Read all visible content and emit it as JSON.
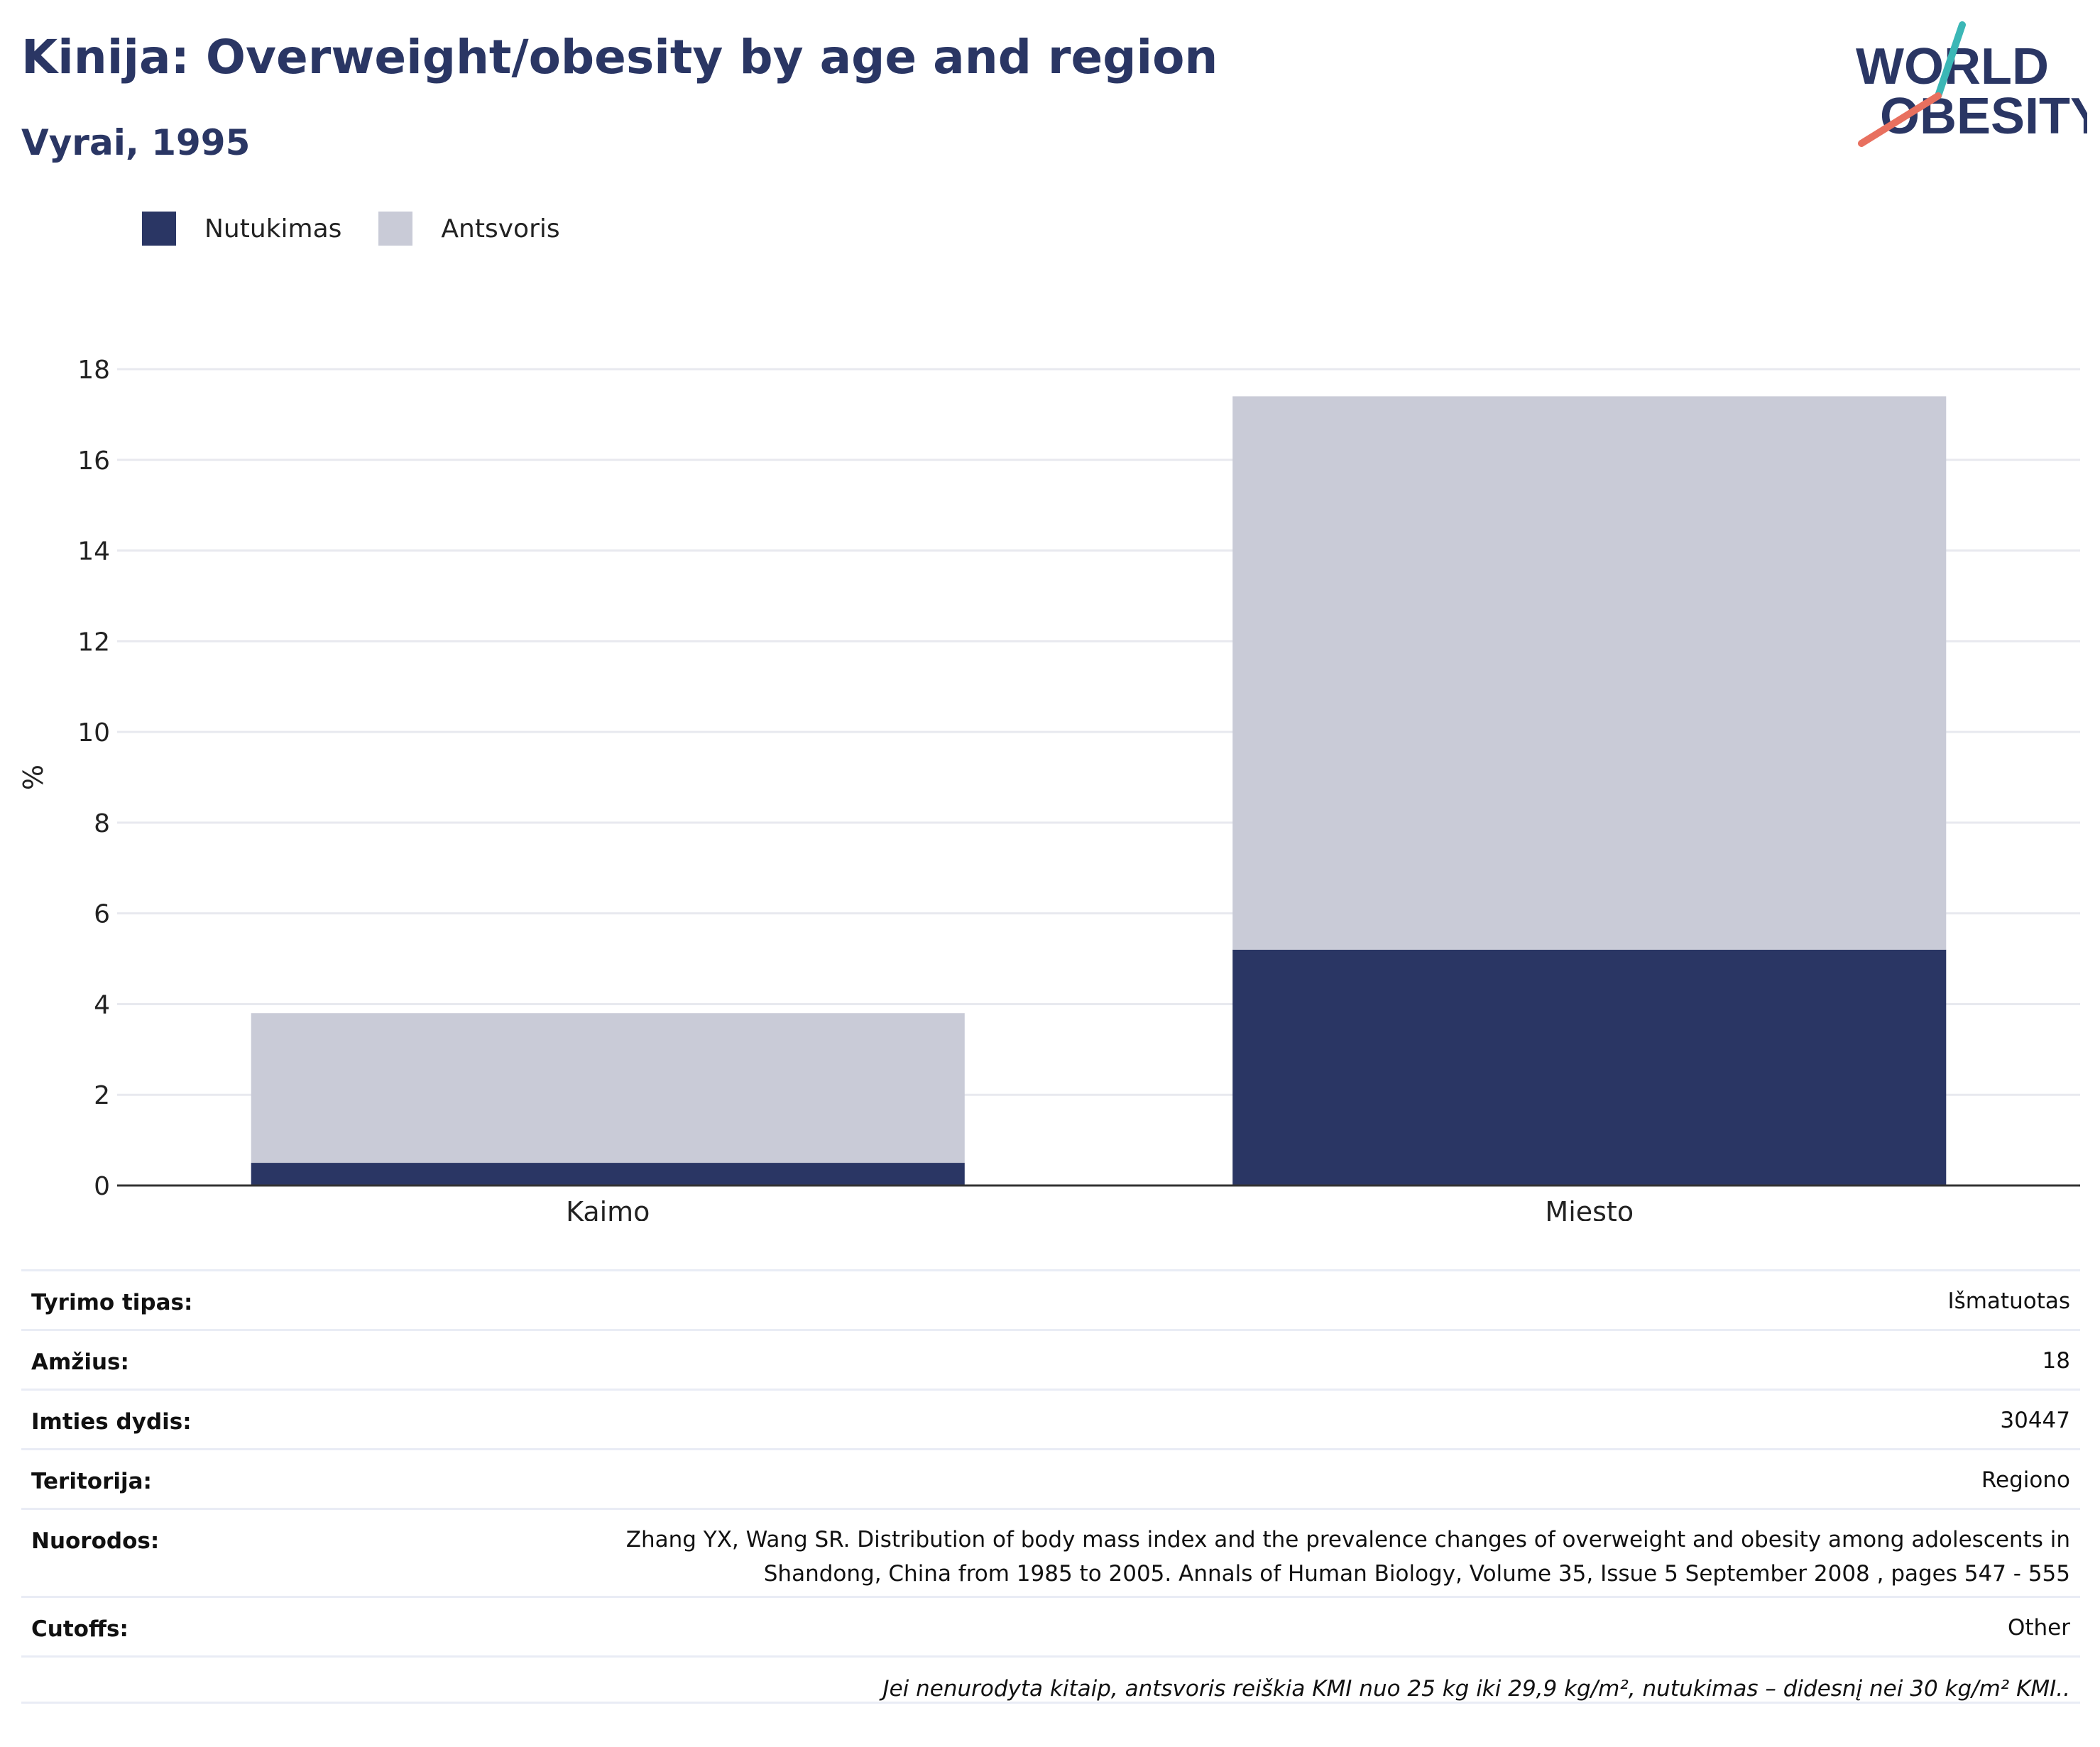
{
  "header": {
    "title": "Kinija: Overweight/obesity by age and region",
    "subtitle": "Vyrai, 1995",
    "logo_line1": "WORLD",
    "logo_line2": "OBESITY"
  },
  "legend": [
    {
      "label": "Nutukimas",
      "color": "#2a3664"
    },
    {
      "label": "Antsvoris",
      "color": "#c9cbd7"
    }
  ],
  "chart_data": {
    "type": "bar",
    "stacked": true,
    "categories": [
      "Kaimo",
      "Miesto"
    ],
    "series": [
      {
        "name": "Nutukimas",
        "color": "#2a3664",
        "values": [
          0.5,
          5.2
        ]
      },
      {
        "name": "Antsvoris",
        "color": "#c9cbd7",
        "values": [
          3.3,
          12.2
        ]
      }
    ],
    "ylabel": "%",
    "ylim": [
      0,
      18
    ],
    "yticks": [
      0,
      2,
      4,
      6,
      8,
      10,
      12,
      14,
      16,
      18
    ],
    "grid": true,
    "legend_position": "top-left"
  },
  "info": {
    "rows": [
      {
        "label": "Tyrimo tipas:",
        "value": "Išmatuotas"
      },
      {
        "label": "Amžius:",
        "value": "18"
      },
      {
        "label": "Imties dydis:",
        "value": "30447"
      },
      {
        "label": "Teritorija:",
        "value": "Regiono"
      },
      {
        "label": "Nuorodos:",
        "value": "Zhang YX, Wang SR. Distribution of body mass index and the prevalence changes of overweight and obesity among adolescents in Shandong, China from 1985 to 2005. Annals of Human Biology, Volume 35, Issue 5 September 2008 , pages 547 - 555"
      },
      {
        "label": "Cutoffs:",
        "value": "Other"
      }
    ],
    "note": "Jei nenurodyta kitaip, antsvoris reiškia KMI nuo 25 kg iki 29,9 kg/m², nutukimas – didesnį nei 30 kg/m² KMI.."
  }
}
